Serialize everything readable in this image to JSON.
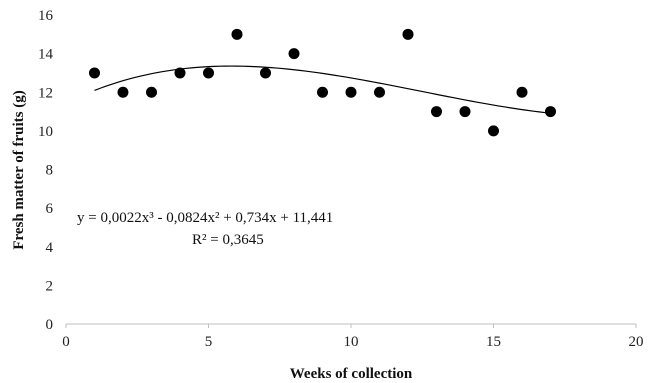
{
  "chart_data": {
    "type": "scatter",
    "title": "",
    "xlabel": "Weeks of collection",
    "ylabel": "Fresh matter of fruits (g)",
    "xlim": [
      0,
      20
    ],
    "ylim": [
      0,
      16
    ],
    "xticks": [
      0,
      5,
      10,
      15,
      20
    ],
    "yticks": [
      0,
      2,
      4,
      6,
      8,
      10,
      12,
      14,
      16
    ],
    "grid": false,
    "legend": "none",
    "series": [
      {
        "x": [
          1,
          2,
          3,
          4,
          5,
          6,
          7,
          8,
          9,
          10,
          11,
          12,
          13,
          14,
          15,
          16,
          17
        ],
        "y": [
          13,
          12,
          12,
          13,
          13,
          15,
          13,
          14,
          12,
          12,
          12,
          15,
          11,
          11,
          10,
          12,
          11
        ],
        "marker_color": "#000000"
      }
    ],
    "trendline": {
      "type": "polynomial",
      "order": 3,
      "coefficients": [
        0.0022,
        -0.0824,
        0.734,
        11.441
      ],
      "x_range": [
        1,
        17
      ],
      "color": "#000000",
      "equation_text": "y = 0,0022x³ - 0,0824x² + 0,734x + 11,441",
      "r2_text": "R² = 0,3645"
    }
  }
}
